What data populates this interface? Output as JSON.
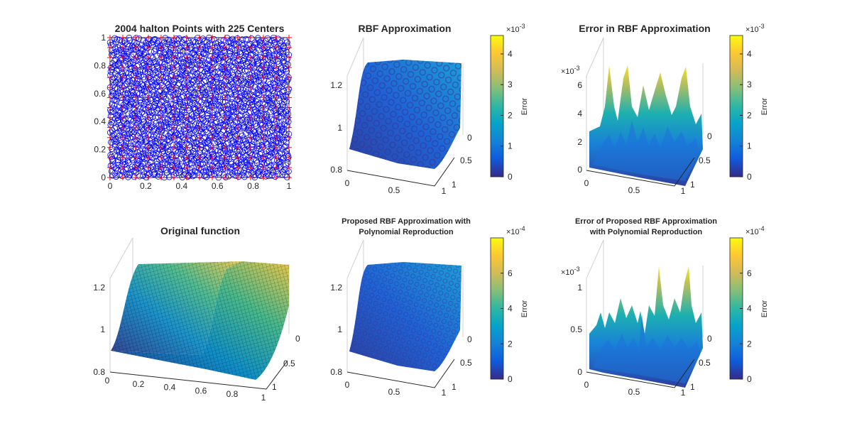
{
  "chart_data": [
    {
      "type": "scatter",
      "title": "2004  halton Points with 225 Centers",
      "xlim": [
        0,
        1
      ],
      "ylim": [
        0,
        1
      ],
      "x_ticks": [
        "0",
        "0.2",
        "0.4",
        "0.6",
        "0.8",
        "1"
      ],
      "y_ticks": [
        "0",
        "0.2",
        "0.4",
        "0.6",
        "0.8",
        "1"
      ],
      "series": [
        {
          "marker": "circle",
          "color": "#0000ff",
          "count": 2004
        },
        {
          "marker": "plus",
          "color": "#ff0000",
          "count": 225
        }
      ]
    },
    {
      "type": "surface",
      "title": "RBF Approximation",
      "z_ticks": [
        "0.8",
        "1",
        "1.2"
      ],
      "x_ticks": [
        "0",
        "0.5",
        "1"
      ],
      "y_ticks": [
        "0",
        "0.5",
        "1"
      ],
      "colorbar": {
        "label": "Error",
        "exponent_base": "×10",
        "exponent": "-3",
        "ticks": [
          "0",
          "1",
          "2",
          "3",
          "4"
        ],
        "max": 4.6
      }
    },
    {
      "type": "surface",
      "title": "Error in RBF Approximation",
      "z_exponent_base": "×10",
      "z_exponent": "-3",
      "z_ticks": [
        "0",
        "2",
        "4",
        "6"
      ],
      "x_ticks": [
        "0",
        "0.5",
        "1"
      ],
      "y_ticks": [
        "0",
        "0.5",
        "1"
      ],
      "colorbar": {
        "label": "Error",
        "exponent_base": "×10",
        "exponent": "-3",
        "ticks": [
          "0",
          "1",
          "2",
          "3",
          "4"
        ],
        "max": 4.6
      }
    },
    {
      "type": "surface",
      "title": "Original function",
      "z_ticks": [
        "0.8",
        "1",
        "1.2"
      ],
      "x_ticks": [
        "0",
        "0.2",
        "0.4",
        "0.6",
        "0.8",
        "1"
      ],
      "y_ticks": [
        "0",
        "0.5",
        "1"
      ]
    },
    {
      "type": "surface",
      "title_lines": [
        "Proposed RBF Approximation with",
        "Polynomial Reproduction"
      ],
      "z_ticks": [
        "0.8",
        "1",
        "1.2"
      ],
      "x_ticks": [
        "0",
        "0.5",
        "1"
      ],
      "y_ticks": [
        "0",
        "0.5",
        "1"
      ],
      "colorbar": {
        "label": "Error",
        "exponent_base": "×10",
        "exponent": "-4",
        "ticks": [
          "0",
          "2",
          "4",
          "6"
        ],
        "max": 8
      }
    },
    {
      "type": "surface",
      "title_lines": [
        "Error of Proposed RBF Approximation",
        "with Polynomial Reproduction"
      ],
      "z_exponent_base": "×10",
      "z_exponent": "-3",
      "z_ticks": [
        "0",
        "0.5",
        "1"
      ],
      "x_ticks": [
        "0",
        "0.5",
        "1"
      ],
      "y_ticks": [
        "0",
        "0.5",
        "1"
      ],
      "colorbar": {
        "label": "Error",
        "exponent_base": "×10",
        "exponent": "-4",
        "ticks": [
          "0",
          "2",
          "4",
          "6"
        ],
        "max": 8
      }
    }
  ]
}
